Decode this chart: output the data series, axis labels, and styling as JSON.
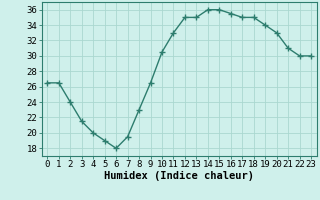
{
  "x": [
    0,
    1,
    2,
    3,
    4,
    5,
    6,
    7,
    8,
    9,
    10,
    11,
    12,
    13,
    14,
    15,
    16,
    17,
    18,
    19,
    20,
    21,
    22,
    23
  ],
  "y": [
    26.5,
    26.5,
    24.0,
    21.5,
    20.0,
    19.0,
    18.0,
    19.5,
    23.0,
    26.5,
    30.5,
    33.0,
    35.0,
    35.0,
    36.0,
    36.0,
    35.5,
    35.0,
    35.0,
    34.0,
    33.0,
    31.0,
    30.0,
    30.0
  ],
  "xlabel": "Humidex (Indice chaleur)",
  "line_color": "#2d7d6e",
  "marker_color": "#2d7d6e",
  "bg_color": "#cff0eb",
  "grid_color": "#aad8d0",
  "xlim": [
    -0.5,
    23.5
  ],
  "ylim": [
    17,
    37
  ],
  "yticks": [
    18,
    20,
    22,
    24,
    26,
    28,
    30,
    32,
    34,
    36
  ],
  "xticks": [
    0,
    1,
    2,
    3,
    4,
    5,
    6,
    7,
    8,
    9,
    10,
    11,
    12,
    13,
    14,
    15,
    16,
    17,
    18,
    19,
    20,
    21,
    22,
    23
  ],
  "xtick_labels": [
    "0",
    "1",
    "2",
    "3",
    "4",
    "5",
    "6",
    "7",
    "8",
    "9",
    "10",
    "11",
    "12",
    "13",
    "14",
    "15",
    "16",
    "17",
    "18",
    "19",
    "20",
    "21",
    "22",
    "23"
  ],
  "xlabel_fontsize": 7.5,
  "tick_fontsize": 6.5,
  "line_width": 1.0,
  "marker_size": 4
}
